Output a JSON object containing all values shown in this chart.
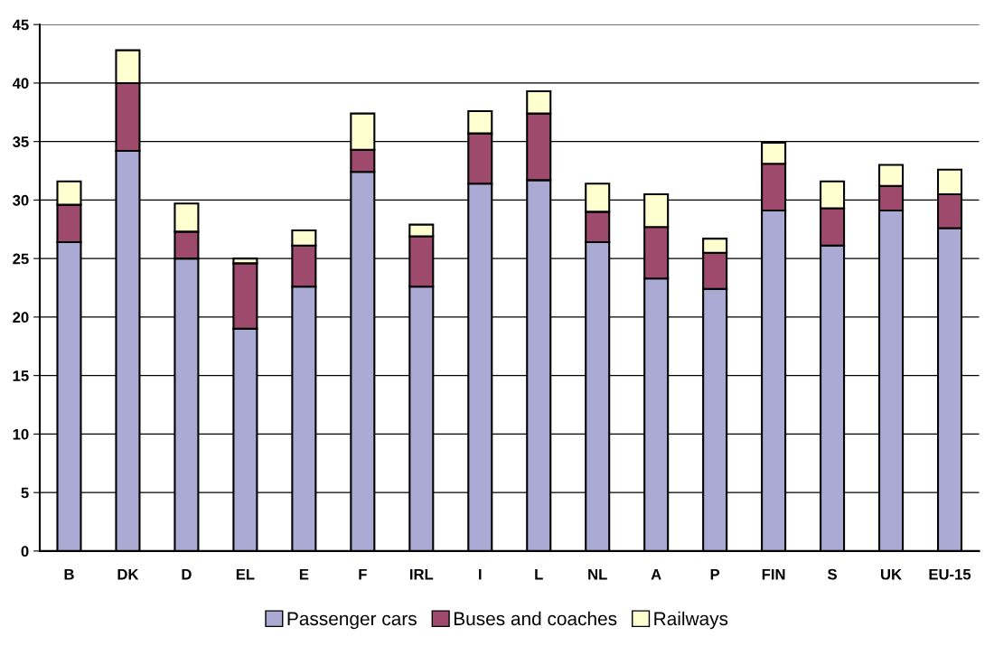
{
  "chart_data": {
    "type": "bar",
    "stacked": true,
    "categories": [
      "B",
      "DK",
      "D",
      "EL",
      "E",
      "F",
      "IRL",
      "I",
      "L",
      "NL",
      "A",
      "P",
      "FIN",
      "S",
      "UK",
      "EU-15"
    ],
    "series": [
      {
        "name": "Passenger cars",
        "color": "#aaaad4",
        "values": [
          26.4,
          34.2,
          25.0,
          19.0,
          22.6,
          32.4,
          22.6,
          31.4,
          31.7,
          26.4,
          23.3,
          22.4,
          29.1,
          26.1,
          29.1,
          27.6
        ]
      },
      {
        "name": "Buses and coaches",
        "color": "#9e4a6c",
        "values": [
          3.2,
          5.8,
          2.3,
          5.6,
          3.5,
          1.9,
          4.3,
          4.3,
          5.7,
          2.6,
          4.4,
          3.1,
          4.0,
          3.2,
          2.1,
          2.9
        ]
      },
      {
        "name": "Railways",
        "color": "#ffffd0",
        "values": [
          2.0,
          2.8,
          2.4,
          0.4,
          1.3,
          3.1,
          1.0,
          1.9,
          1.9,
          2.4,
          2.8,
          1.2,
          1.8,
          2.3,
          1.8,
          2.1
        ]
      }
    ],
    "ylim": [
      0,
      45
    ],
    "yticks": [
      0,
      5,
      10,
      15,
      20,
      25,
      30,
      35,
      40,
      45
    ],
    "grid": "y",
    "legend": "bottom"
  }
}
